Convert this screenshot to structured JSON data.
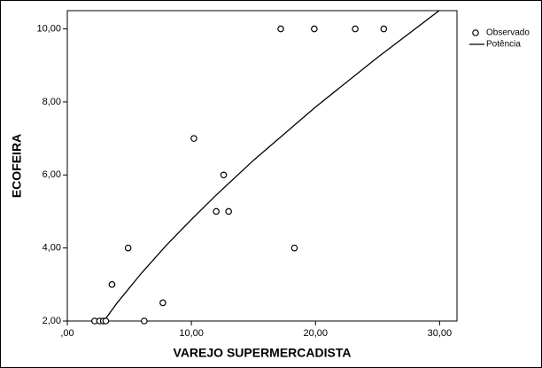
{
  "chart_data": {
    "type": "scatter",
    "x_label": "VAREJO SUPERMERCADISTA",
    "y_label": "ECOFEIRA",
    "xlim": [
      0,
      31.4
    ],
    "ylim": [
      2,
      10.5
    ],
    "xticks": [
      {
        "value": 0,
        "label": ",00"
      },
      {
        "value": 10,
        "label": "10,00"
      },
      {
        "value": 20,
        "label": "20,00"
      },
      {
        "value": 30,
        "label": "30,00"
      }
    ],
    "yticks": [
      {
        "value": 2,
        "label": "2,00"
      },
      {
        "value": 4,
        "label": "4,00"
      },
      {
        "value": 6,
        "label": "6,00"
      },
      {
        "value": 8,
        "label": "8,00"
      },
      {
        "value": 10,
        "label": "10,00"
      }
    ],
    "legend": "top-right-outside",
    "series": [
      {
        "name": "Observado",
        "kind": "points",
        "color": "#000000",
        "x": [
          2.2,
          2.6,
          2.9,
          3.1,
          6.2,
          3.6,
          4.9,
          7.7,
          10.2,
          12.0,
          13.0,
          12.6,
          18.3,
          17.2,
          19.9,
          23.2,
          25.5
        ],
        "values": [
          2,
          2,
          2,
          2,
          2,
          3,
          4,
          2.5,
          7,
          5,
          5,
          6,
          4,
          10,
          10,
          10,
          10
        ]
      },
      {
        "name": "Potência",
        "kind": "line",
        "color": "#000000",
        "x": [
          3,
          4,
          6,
          8,
          10,
          12,
          15,
          20,
          25,
          30
        ],
        "values": [
          2.02,
          2.49,
          3.32,
          4.08,
          4.78,
          5.45,
          6.4,
          7.86,
          9.22,
          10.51
        ]
      }
    ]
  }
}
